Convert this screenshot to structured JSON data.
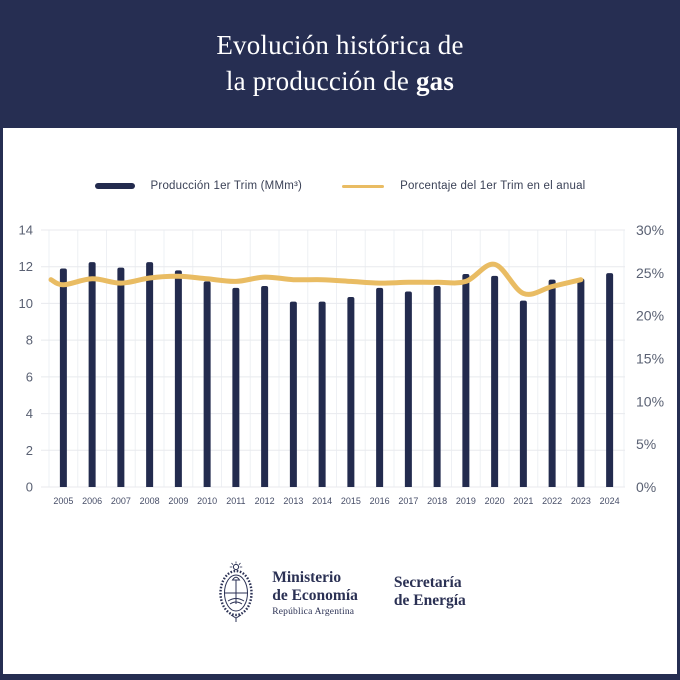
{
  "header": {
    "title_line1": "Evolución histórica de",
    "title_line2_prefix": "la producción de ",
    "title_line2_bold": "gas"
  },
  "legend": {
    "bars_label": "Producción 1er Trim (MMm³)",
    "line_label": "Porcentaje del 1er Trim en el anual"
  },
  "chart_data": {
    "type": "bar",
    "title": "Evolución histórica de la producción de gas",
    "categories": [
      "2005",
      "2006",
      "2007",
      "2008",
      "2009",
      "2010",
      "2011",
      "2012",
      "2013",
      "2014",
      "2015",
      "2016",
      "2017",
      "2018",
      "2019",
      "2020",
      "2021",
      "2022",
      "2023",
      "2024"
    ],
    "series": [
      {
        "name": "Producción 1er Trim (MMm³)",
        "type": "bar",
        "axis": "left",
        "color": "#232b4e",
        "values": [
          11.9,
          12.25,
          11.95,
          12.25,
          11.8,
          11.2,
          10.85,
          10.95,
          10.1,
          10.1,
          10.35,
          10.85,
          10.65,
          10.95,
          11.6,
          11.5,
          10.15,
          11.3,
          11.35,
          11.65
        ]
      },
      {
        "name": "Porcentaje del 1er Trim en el anual",
        "type": "line",
        "axis": "right",
        "color": "#e9bc63",
        "start_value": 24.2,
        "values": [
          23.6,
          24.3,
          23.8,
          24.4,
          24.6,
          24.3,
          24.0,
          24.5,
          24.2,
          24.2,
          24.0,
          23.8,
          23.9,
          23.9,
          24.0,
          26.0,
          22.6,
          23.4,
          24.2,
          null
        ]
      }
    ],
    "left_axis": {
      "min": 0,
      "max": 14,
      "ticks": [
        0,
        2,
        4,
        6,
        8,
        10,
        12,
        14
      ]
    },
    "right_axis": {
      "min": 0,
      "max": 30,
      "ticks": [
        "0%",
        "5%",
        "10%",
        "15%",
        "20%",
        "25%",
        "30%"
      ],
      "tick_values": [
        0,
        5,
        10,
        15,
        20,
        25,
        30
      ]
    },
    "grid": true,
    "legend_position": "top"
  },
  "footer": {
    "ministry_line1": "Ministerio",
    "ministry_line2": "de Economía",
    "ministry_sub": "República Argentina",
    "secretary_line1": "Secretaría",
    "secretary_line2": "de Energía"
  },
  "colors": {
    "background_navy": "#262e52",
    "bar_navy": "#232b4e",
    "line_gold": "#e9bc63",
    "grid": "#e8eaee",
    "grid_vertical": "#eef0f4",
    "tick_text": "#5a6173",
    "year_text": "#474e68",
    "panel": "#ffffff"
  }
}
